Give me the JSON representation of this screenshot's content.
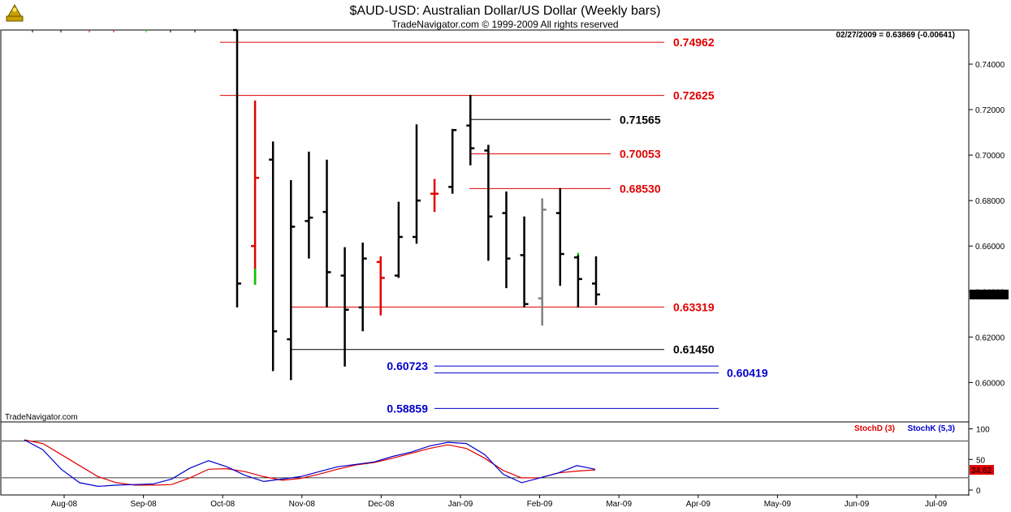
{
  "header": {
    "title": "$AUD-USD:  Australian Dollar/US Dollar  (Weekly bars)",
    "copyright": "TradeNavigator.com © 1999-2009 All rights reserved",
    "last_quote": "02/27/2009 = 0.63869 (-0.00641)",
    "watermark": "TradeNavigator.com"
  },
  "chart_data": [
    {
      "type": "ohlc",
      "title": "$AUD-USD:  Australian Dollar/US Dollar  (Weekly bars)",
      "ylim": [
        0.583,
        0.755
      ],
      "y_ticks": [
        "0.74000",
        "0.72000",
        "0.70000",
        "0.68000",
        "0.66000",
        "0.64000",
        "0.62000",
        "0.60000"
      ],
      "y_tick_values": [
        0.74,
        0.72,
        0.7,
        0.68,
        0.66,
        0.64,
        0.62,
        0.6
      ],
      "last_price_label": "0.63869",
      "last_price": 0.63869,
      "x_labels": [
        "Aug-08",
        "Sep-08",
        "Oct-08",
        "Nov-08",
        "Dec-08",
        "Jan-09",
        "Feb-09",
        "Mar-09",
        "Apr-09",
        "May-09",
        "Jun-09",
        "Jul-09"
      ],
      "colors": {
        "up_down": "#000000",
        "red": "#e00000",
        "green": "#00cc00",
        "gray": "#808080",
        "support_blue": "#0000cc"
      },
      "bars": [
        {
          "week": 0,
          "open": 0.755,
          "high": 0.755,
          "low": 0.633,
          "close": 0.6435,
          "color": "#000000"
        },
        {
          "week": 1,
          "open": 0.66,
          "high": 0.724,
          "low": 0.643,
          "close": 0.69,
          "color": "#e00000",
          "accent_low": 0.65,
          "accent_color": "#00cc00"
        },
        {
          "week": 2,
          "open": 0.698,
          "high": 0.706,
          "low": 0.605,
          "close": 0.6225,
          "color": "#000000"
        },
        {
          "week": 3,
          "open": 0.619,
          "high": 0.689,
          "low": 0.601,
          "close": 0.6685,
          "color": "#000000"
        },
        {
          "week": 4,
          "open": 0.671,
          "high": 0.7015,
          "low": 0.6545,
          "close": 0.6725,
          "color": "#000000"
        },
        {
          "week": 5,
          "open": 0.675,
          "high": 0.698,
          "low": 0.633,
          "close": 0.6485,
          "color": "#000000"
        },
        {
          "week": 6,
          "open": 0.647,
          "high": 0.6595,
          "low": 0.607,
          "close": 0.632,
          "color": "#000000"
        },
        {
          "week": 7,
          "open": 0.633,
          "high": 0.6615,
          "low": 0.6225,
          "close": 0.6545,
          "color": "#000000"
        },
        {
          "week": 8,
          "open": 0.653,
          "high": 0.6555,
          "low": 0.6295,
          "close": 0.646,
          "color": "#e00000"
        },
        {
          "week": 9,
          "open": 0.647,
          "high": 0.6795,
          "low": 0.646,
          "close": 0.664,
          "color": "#000000"
        },
        {
          "week": 10,
          "open": 0.664,
          "high": 0.7135,
          "low": 0.661,
          "close": 0.68,
          "color": "#000000"
        },
        {
          "week": 11,
          "open": 0.683,
          "high": 0.6895,
          "low": 0.675,
          "close": 0.683,
          "color": "#e00000"
        },
        {
          "week": 12,
          "open": 0.686,
          "high": 0.7115,
          "low": 0.683,
          "close": 0.711,
          "color": "#000000"
        },
        {
          "week": 13,
          "open": 0.713,
          "high": 0.7265,
          "low": 0.6955,
          "close": 0.703,
          "color": "#000000"
        },
        {
          "week": 14,
          "open": 0.702,
          "high": 0.7045,
          "low": 0.6535,
          "close": 0.673,
          "color": "#000000"
        },
        {
          "week": 15,
          "open": 0.6745,
          "high": 0.684,
          "low": 0.6415,
          "close": 0.6545,
          "color": "#000000"
        },
        {
          "week": 16,
          "open": 0.656,
          "high": 0.673,
          "low": 0.633,
          "close": 0.6345,
          "color": "#000000"
        },
        {
          "week": 17,
          "open": 0.637,
          "high": 0.681,
          "low": 0.625,
          "close": 0.676,
          "color": "#808080"
        },
        {
          "week": 18,
          "open": 0.6745,
          "high": 0.6855,
          "low": 0.6425,
          "close": 0.6565,
          "color": "#000000"
        },
        {
          "week": 19,
          "open": 0.655,
          "high": 0.656,
          "low": 0.633,
          "close": 0.6455,
          "color": "#000000",
          "accent_high": 0.657,
          "accent_color": "#00cc00"
        },
        {
          "week": 20,
          "open": 0.6435,
          "high": 0.6555,
          "low": 0.634,
          "close": 0.6387,
          "color": "#000000"
        }
      ],
      "levels": [
        {
          "value": 0.74962,
          "label": "0.74962",
          "color": "#e00000"
        },
        {
          "value": 0.72625,
          "label": "0.72625",
          "color": "#e00000"
        },
        {
          "value": 0.71565,
          "label": "0.71565",
          "color": "#000000"
        },
        {
          "value": 0.70053,
          "label": "0.70053",
          "color": "#e00000"
        },
        {
          "value": 0.6853,
          "label": "0.68530",
          "color": "#e00000"
        },
        {
          "value": 0.63319,
          "label": "0.63319",
          "color": "#e00000"
        },
        {
          "value": 0.6145,
          "label": "0.61450",
          "color": "#000000"
        },
        {
          "value": 0.60723,
          "label": "0.60723",
          "color": "#0000cc"
        },
        {
          "value": 0.60419,
          "label": "0.60419",
          "color": "#0000cc"
        },
        {
          "value": 0.58859,
          "label": "0.58859",
          "color": "#0000cc"
        }
      ]
    },
    {
      "type": "line",
      "ylim": [
        -8,
        110
      ],
      "y_ticks": [
        "100",
        "50",
        "0"
      ],
      "y_tick_values": [
        100,
        50,
        0
      ],
      "reference_lines": [
        80,
        20
      ],
      "last_value_label": "34.62",
      "series": [
        {
          "name": "StochD (3)",
          "color": "#e00000",
          "values": [
            82,
            76,
            58,
            40,
            22,
            12,
            8,
            8,
            9,
            20,
            34,
            35,
            30,
            22,
            16,
            19,
            26,
            34,
            41,
            45,
            52,
            60,
            68,
            74,
            68,
            52,
            32,
            20,
            20,
            28,
            31,
            33
          ]
        },
        {
          "name": "StochK (5,3)",
          "color": "#0000cc",
          "values": [
            82,
            66,
            34,
            12,
            6,
            8,
            9,
            10,
            18,
            36,
            48,
            38,
            24,
            14,
            18,
            22,
            30,
            38,
            42,
            46,
            55,
            62,
            72,
            78,
            76,
            58,
            26,
            12,
            20,
            28,
            40,
            34
          ]
        }
      ]
    }
  ]
}
